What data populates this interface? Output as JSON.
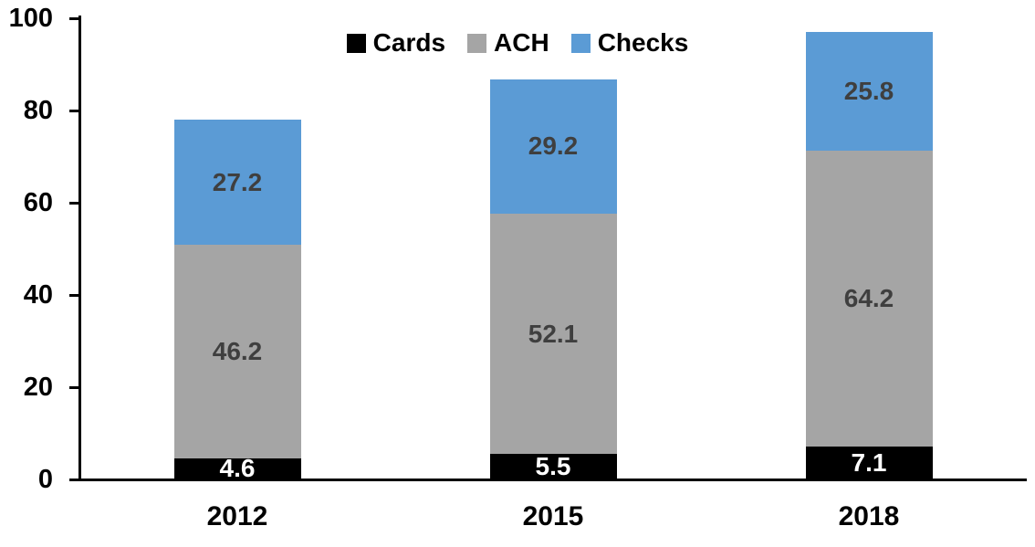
{
  "chart_data": {
    "type": "bar",
    "stacked": true,
    "categories": [
      "2012",
      "2015",
      "2018"
    ],
    "series": [
      {
        "name": "Cards",
        "color": "#000000",
        "label_color": "#FFFFFF",
        "values": [
          4.6,
          5.5,
          7.1
        ]
      },
      {
        "name": "ACH",
        "color": "#A5A5A5",
        "label_color": "#3F3F3F",
        "values": [
          46.2,
          52.1,
          64.2
        ]
      },
      {
        "name": "Checks",
        "color": "#5B9BD5",
        "label_color": "#3F3F3F",
        "values": [
          27.2,
          29.2,
          25.8
        ]
      }
    ],
    "y_axis": {
      "min": 0,
      "max": 100,
      "tick_step": 20,
      "ticks": [
        0,
        20,
        40,
        60,
        80,
        100
      ]
    },
    "x_axis": {
      "label": ""
    },
    "legend_position": "top",
    "grid": false,
    "axis_color": "#000000",
    "background_color": "#FFFFFF",
    "bar_totals": [
      78.0,
      86.8,
      97.1
    ]
  }
}
